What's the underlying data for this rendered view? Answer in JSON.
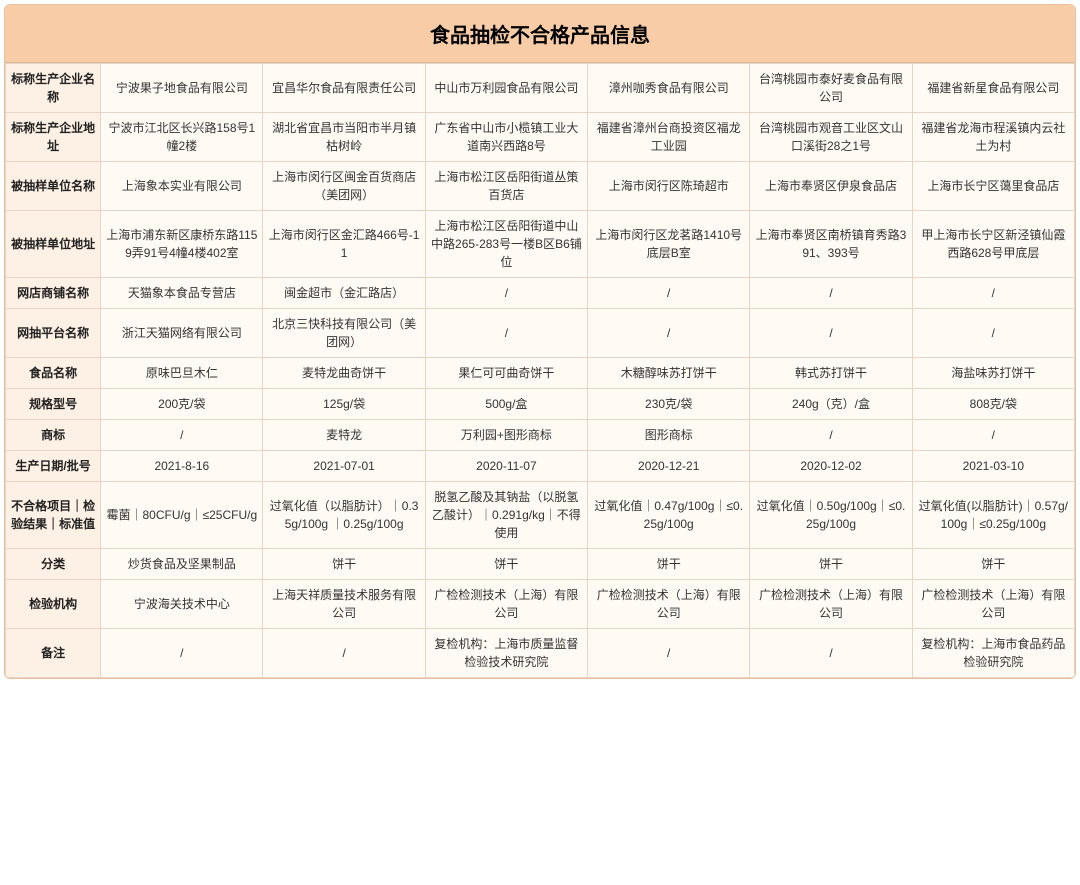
{
  "title": "食品抽检不合格产品信息",
  "rows": [
    {
      "label": "标称生产企业名称",
      "cells": [
        "宁波果子地食品有限公司",
        "宜昌华尔食品有限责任公司",
        "中山市万利园食品有限公司",
        "漳州咖秀食品有限公司",
        "台湾桃园市泰好麦食品有限公司",
        "福建省新星食品有限公司"
      ]
    },
    {
      "label": "标称生产企业地址",
      "cells": [
        "宁波市江北区长兴路158号1幢2楼",
        "湖北省宜昌市当阳市半月镇枯树岭",
        "广东省中山市小榄镇工业大道南兴西路8号",
        "福建省漳州台商投资区福龙工业园",
        "台湾桃园市观音工业区文山口溪街28之1号",
        "福建省龙海市程溪镇内云社土为村"
      ]
    },
    {
      "label": "被抽样单位名称",
      "cells": [
        "上海象本实业有限公司",
        "上海市闵行区闽金百货商店（美团网）",
        "上海市松江区岳阳街道丛策百货店",
        "上海市闵行区陈琦超市",
        "上海市奉贤区伊泉食品店",
        "上海市长宁区蔼里食品店"
      ]
    },
    {
      "label": "被抽样单位地址",
      "cells": [
        "上海市浦东新区康桥东路1159弄91号4幢4楼402室",
        "上海市闵行区金汇路466号-11",
        "上海市松江区岳阳街道中山中路265-283号一楼B区B6铺位",
        "上海市闵行区龙茗路1410号底层B室",
        "上海市奉贤区南桥镇育秀路391、393号",
        "甲上海市长宁区新泾镇仙霞西路628号甲底层"
      ]
    },
    {
      "label": "网店商铺名称",
      "cells": [
        "天猫象本食品专营店",
        "闽金超市（金汇路店）",
        "/",
        "/",
        "/",
        "/"
      ]
    },
    {
      "label": "网抽平台名称",
      "cells": [
        "浙江天猫网络有限公司",
        "北京三快科技有限公司（美团网）",
        "/",
        "/",
        "/",
        "/"
      ]
    },
    {
      "label": "食品名称",
      "cells": [
        "原味巴旦木仁",
        "麦特龙曲奇饼干",
        "果仁可可曲奇饼干",
        "木糖醇味苏打饼干",
        "韩式苏打饼干",
        "海盐味苏打饼干"
      ]
    },
    {
      "label": "规格型号",
      "cells": [
        "200克/袋",
        "125g/袋",
        "500g/盒",
        "230克/袋",
        "240g（克）/盒",
        "808克/袋"
      ]
    },
    {
      "label": "商标",
      "cells": [
        "/",
        "麦特龙",
        "万利园+图形商标",
        "图形商标",
        "/",
        "/"
      ]
    },
    {
      "label": "生产日期/批号",
      "cells": [
        "2021-8-16",
        "2021-07-01",
        "2020-11-07",
        "2020-12-21",
        "2020-12-02",
        "2021-03-10"
      ]
    },
    {
      "label": "不合格项目｜检验结果｜标准值",
      "cells": [
        "霉菌｜80CFU/g｜≤25CFU/g",
        "过氧化值（以脂肪计）｜0.35g/100g ｜0.25g/100g",
        "脱氢乙酸及其钠盐（以脱氢乙酸计）｜0.291g/kg｜不得使用",
        "过氧化值｜0.47g/100g｜≤0.25g/100g",
        "过氧化值｜0.50g/100g｜≤0.25g/100g",
        "过氧化值(以脂肪计)｜0.57g/100g｜≤0.25g/100g"
      ]
    },
    {
      "label": "分类",
      "cells": [
        "炒货食品及坚果制品",
        "饼干",
        "饼干",
        "饼干",
        "饼干",
        "饼干"
      ]
    },
    {
      "label": "检验机构",
      "cells": [
        "宁波海关技术中心",
        "上海天祥质量技术服务有限公司",
        "广检检测技术（上海）有限公司",
        "广检检测技术（上海）有限公司",
        "广检检测技术（上海）有限公司",
        "广检检测技术（上海）有限公司"
      ]
    },
    {
      "label": "备注",
      "cells": [
        "/",
        "/",
        "复检机构：上海市质量监督检验技术研究院",
        "/",
        "/",
        "复检机构：上海市食品药品检验研究院"
      ]
    }
  ],
  "style": {
    "title_bg": "#f7cca7",
    "header_bg": "#fdf0e4",
    "cell_bg": "#fffaf4",
    "border_color": "#e6d4c4",
    "title_fontsize": 20,
    "cell_fontsize": 12
  }
}
